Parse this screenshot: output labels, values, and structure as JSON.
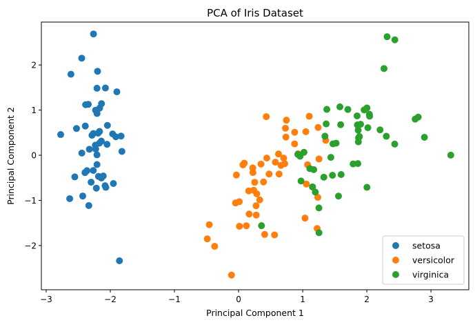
{
  "chart_data": {
    "type": "scatter",
    "title": "PCA of Iris Dataset",
    "xlabel": "Principal Component 1",
    "ylabel": "Principal Component 2",
    "xlim": [
      -3.075,
      3.59
    ],
    "ylim": [
      -2.98,
      2.95
    ],
    "xticks": [
      -3,
      -2,
      -1,
      0,
      1,
      2,
      3
    ],
    "yticks": [
      -2,
      -1,
      0,
      1,
      2
    ],
    "grid": false,
    "legend_position": "bottom-right",
    "series": [
      {
        "name": "setosa",
        "color": "#1f77b4",
        "points": [
          [
            -2.265,
            0.48
          ],
          [
            -2.081,
            -0.674
          ],
          [
            -2.364,
            -0.342
          ],
          [
            -2.299,
            -0.597
          ],
          [
            -2.39,
            0.647
          ],
          [
            -2.076,
            1.489
          ],
          [
            -2.444,
            0.048
          ],
          [
            -2.233,
            0.223
          ],
          [
            -2.335,
            -1.115
          ],
          [
            -2.184,
            -0.469
          ],
          [
            -2.166,
            1.043
          ],
          [
            -2.326,
            0.133
          ],
          [
            -2.218,
            -0.729
          ],
          [
            -2.633,
            -0.962
          ],
          [
            -2.199,
            1.86
          ],
          [
            -2.262,
            2.687
          ],
          [
            -2.208,
            1.484
          ],
          [
            -2.19,
            0.489
          ],
          [
            -1.898,
            1.405
          ],
          [
            -2.343,
            1.128
          ],
          [
            -1.914,
            0.409
          ],
          [
            -2.207,
            0.924
          ],
          [
            -2.774,
            0.458
          ],
          [
            -1.819,
            0.085
          ],
          [
            -2.228,
            0.137
          ],
          [
            -1.952,
            -0.626
          ],
          [
            -2.051,
            0.242
          ],
          [
            -2.168,
            0.527
          ],
          [
            -2.14,
            0.313
          ],
          [
            -2.265,
            -0.338
          ],
          [
            -2.14,
            -0.505
          ],
          [
            -1.832,
            0.424
          ],
          [
            -2.614,
            1.794
          ],
          [
            -2.446,
            2.15
          ],
          [
            -2.11,
            -0.46
          ],
          [
            -2.208,
            -0.206
          ],
          [
            -2.045,
            0.661
          ],
          [
            -2.527,
            0.592
          ],
          [
            -2.43,
            -0.904
          ],
          [
            -2.17,
            0.268
          ],
          [
            -2.286,
            0.442
          ],
          [
            -1.858,
            -2.338
          ],
          [
            -2.554,
            -0.48
          ],
          [
            -1.964,
            0.472
          ],
          [
            -2.137,
            1.142
          ],
          [
            -2.07,
            -0.711
          ],
          [
            -2.385,
            1.12
          ],
          [
            -2.395,
            -0.385
          ],
          [
            -2.23,
            0.998
          ],
          [
            -2.208,
            0.009
          ]
        ]
      },
      {
        "name": "versicolor",
        "color": "#ff7f0e",
        "points": [
          [
            1.102,
            0.863
          ],
          [
            0.731,
            0.599
          ],
          [
            1.241,
            0.615
          ],
          [
            0.407,
            -1.754
          ],
          [
            1.076,
            -0.209
          ],
          [
            0.389,
            -0.592
          ],
          [
            0.746,
            0.777
          ],
          [
            -0.488,
            -1.852
          ],
          [
            0.928,
            0.032
          ],
          [
            0.011,
            -1.03
          ],
          [
            -0.11,
            -2.655
          ],
          [
            0.44,
            -0.063
          ],
          [
            0.561,
            -1.765
          ],
          [
            0.72,
            -0.187
          ],
          [
            -0.034,
            -0.438
          ],
          [
            0.875,
            0.509
          ],
          [
            0.35,
            -0.196
          ],
          [
            0.158,
            -0.791
          ],
          [
            1.225,
            -1.624
          ],
          [
            0.165,
            -1.303
          ],
          [
            0.738,
            0.402
          ],
          [
            0.476,
            -0.417
          ],
          [
            1.235,
            -0.933
          ],
          [
            0.632,
            -0.416
          ],
          [
            0.703,
            -0.063
          ],
          [
            0.874,
            0.251
          ],
          [
            1.254,
            -0.083
          ],
          [
            1.359,
            0.329
          ],
          [
            0.662,
            -0.225
          ],
          [
            -0.047,
            -1.057
          ],
          [
            0.121,
            -1.563
          ],
          [
            0.014,
            -1.573
          ],
          [
            0.236,
            -0.776
          ],
          [
            1.057,
            -0.637
          ],
          [
            0.221,
            -0.281
          ],
          [
            0.432,
            0.855
          ],
          [
            1.049,
            0.522
          ],
          [
            1.036,
            -1.393
          ],
          [
            0.068,
            -0.213
          ],
          [
            0.275,
            -1.325
          ],
          [
            0.273,
            -1.119
          ],
          [
            0.623,
            0.028
          ],
          [
            0.33,
            -0.989
          ],
          [
            -0.373,
            -2.018
          ],
          [
            0.283,
            -0.855
          ],
          [
            0.089,
            -0.175
          ],
          [
            0.224,
            -0.383
          ],
          [
            0.574,
            -0.154
          ],
          [
            -0.457,
            -1.539
          ],
          [
            0.252,
            -0.599
          ]
        ]
      },
      {
        "name": "virginica",
        "color": "#2ca02c",
        "points": [
          [
            1.848,
            0.872
          ],
          [
            1.153,
            -0.702
          ],
          [
            2.206,
            0.562
          ],
          [
            1.439,
            -0.047
          ],
          [
            1.868,
            0.296
          ],
          [
            2.754,
            0.8
          ],
          [
            0.358,
            -1.561
          ],
          [
            2.304,
            0.42
          ],
          [
            2.002,
            -0.711
          ],
          [
            2.268,
            1.921
          ],
          [
            1.366,
            0.694
          ],
          [
            1.599,
            -0.428
          ],
          [
            1.885,
            0.414
          ],
          [
            1.253,
            -1.167
          ],
          [
            1.464,
            -0.444
          ],
          [
            1.592,
            0.677
          ],
          [
            1.472,
            0.253
          ],
          [
            2.437,
            2.557
          ],
          [
            3.309,
            0.002
          ],
          [
            1.254,
            -1.717
          ],
          [
            2.04,
            0.907
          ],
          [
            0.974,
            -0.571
          ],
          [
            2.898,
            0.398
          ],
          [
            1.33,
            -0.487
          ],
          [
            1.704,
            1.014
          ],
          [
            1.958,
            1.003
          ],
          [
            1.172,
            -0.319
          ],
          [
            1.02,
            0.066
          ],
          [
            1.786,
            -0.193
          ],
          [
            1.865,
            0.555
          ],
          [
            2.435,
            0.247
          ],
          [
            2.316,
            2.626
          ],
          [
            1.86,
            -0.185
          ],
          [
            1.111,
            -0.296
          ],
          [
            1.197,
            -0.817
          ],
          [
            2.801,
            0.845
          ],
          [
            1.58,
            1.072
          ],
          [
            1.347,
            0.422
          ],
          [
            0.924,
            0.019
          ],
          [
            1.853,
            0.672
          ],
          [
            2.016,
            0.61
          ],
          [
            1.903,
            0.686
          ],
          [
            1.153,
            -0.702
          ],
          [
            2.043,
            0.865
          ],
          [
            2.002,
            1.048
          ],
          [
            1.871,
            0.383
          ],
          [
            1.558,
            -0.905
          ],
          [
            1.521,
            0.267
          ],
          [
            1.376,
            1.016
          ],
          [
            0.959,
            -0.022
          ]
        ]
      }
    ]
  }
}
